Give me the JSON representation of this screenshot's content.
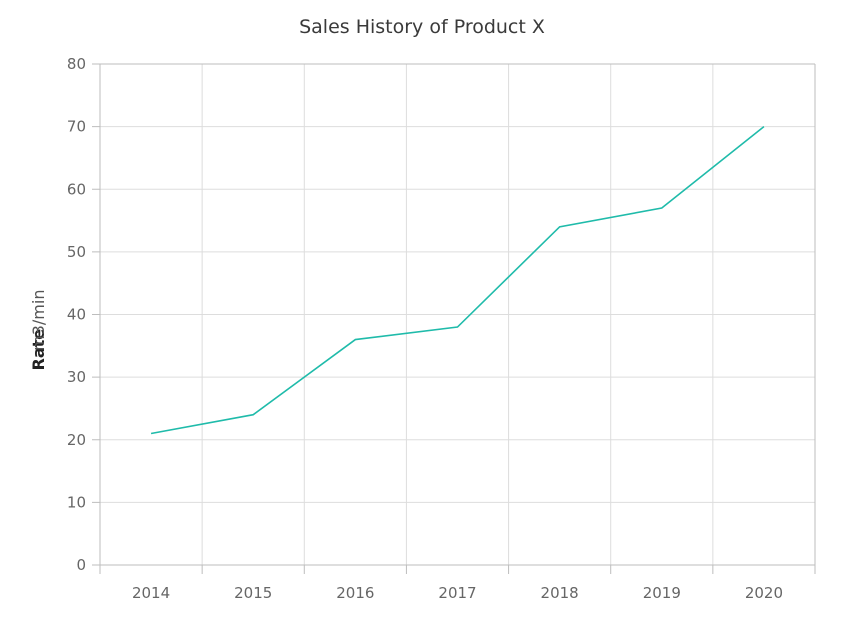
{
  "chart_data": {
    "type": "line",
    "title": "Sales History of Product X",
    "xlabel": "",
    "ylabel": "Rate",
    "ylabel_unit": "m3/min",
    "categories": [
      "2014",
      "2015",
      "2016",
      "2017",
      "2018",
      "2019",
      "2020"
    ],
    "series": [
      {
        "values": [
          21,
          24,
          36,
          38,
          54,
          57,
          70
        ],
        "color": "#1fbbaa"
      }
    ],
    "ylim": [
      0,
      80
    ],
    "yticks": [
      "0",
      "10",
      "20",
      "30",
      "40",
      "50",
      "60",
      "70",
      "80"
    ],
    "grid": true
  }
}
